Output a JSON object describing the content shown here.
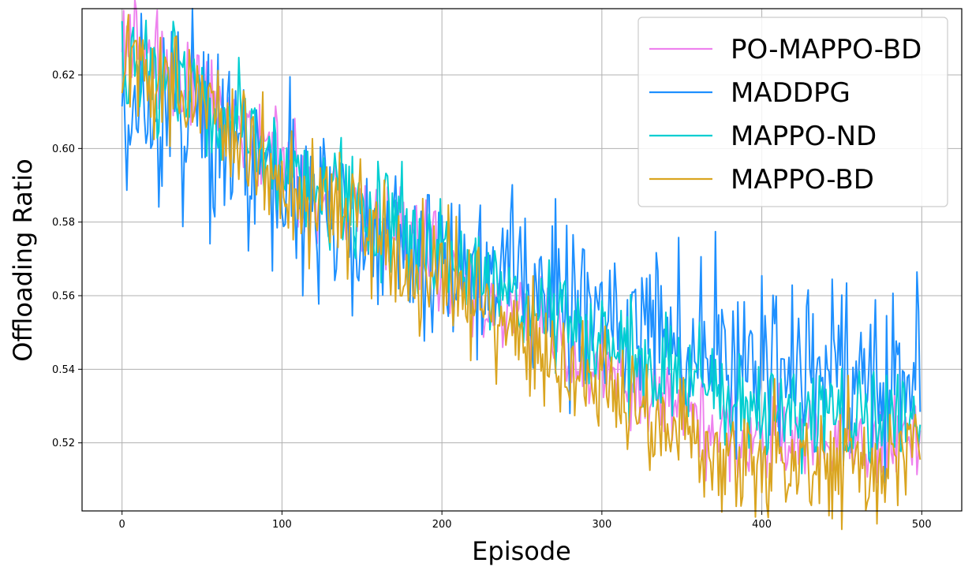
{
  "chart_data": {
    "type": "line",
    "xlabel": "Episode",
    "ylabel": "Offloading Ratio",
    "xlim": [
      -25,
      525
    ],
    "ylim": [
      0.5015,
      0.638
    ],
    "x_ticks": [
      0,
      100,
      200,
      300,
      400,
      500
    ],
    "x_tick_labels": [
      "0",
      "100",
      "200",
      "300",
      "400",
      "500"
    ],
    "y_ticks": [
      0.52,
      0.54,
      0.56,
      0.58,
      0.6,
      0.62
    ],
    "y_tick_labels": [
      "0.52",
      "0.54",
      "0.56",
      "0.58",
      "0.60",
      "0.62"
    ],
    "grid": true,
    "legend_position": "top-right",
    "x": [
      0,
      25,
      50,
      75,
      100,
      125,
      150,
      175,
      200,
      225,
      250,
      275,
      300,
      325,
      350,
      375,
      400,
      425,
      450,
      475,
      500
    ],
    "series": [
      {
        "name": "PO-MAPPO-BD",
        "color": "#ee82ee",
        "values": [
          0.628,
          0.622,
          0.615,
          0.606,
          0.595,
          0.587,
          0.582,
          0.576,
          0.568,
          0.56,
          0.553,
          0.546,
          0.54,
          0.533,
          0.529,
          0.524,
          0.522,
          0.521,
          0.52,
          0.52,
          0.52
        ],
        "noise": 0.0065
      },
      {
        "name": "MADDPG",
        "color": "#1e90ff",
        "values": [
          0.601,
          0.608,
          0.606,
          0.599,
          0.592,
          0.584,
          0.58,
          0.576,
          0.572,
          0.569,
          0.563,
          0.559,
          0.557,
          0.552,
          0.548,
          0.545,
          0.542,
          0.541,
          0.541,
          0.541,
          0.541
        ],
        "noise": 0.0125
      },
      {
        "name": "MAPPO-ND",
        "color": "#00ced1",
        "values": [
          0.62,
          0.619,
          0.614,
          0.606,
          0.597,
          0.589,
          0.584,
          0.579,
          0.572,
          0.565,
          0.559,
          0.553,
          0.547,
          0.541,
          0.536,
          0.531,
          0.529,
          0.528,
          0.528,
          0.528,
          0.529
        ],
        "noise": 0.0075
      },
      {
        "name": "MAPPO-BD",
        "color": "#daa520",
        "values": [
          0.623,
          0.619,
          0.613,
          0.604,
          0.594,
          0.585,
          0.579,
          0.571,
          0.563,
          0.554,
          0.547,
          0.54,
          0.535,
          0.528,
          0.523,
          0.519,
          0.517,
          0.516,
          0.516,
          0.516,
          0.516
        ],
        "noise": 0.0085
      }
    ]
  }
}
